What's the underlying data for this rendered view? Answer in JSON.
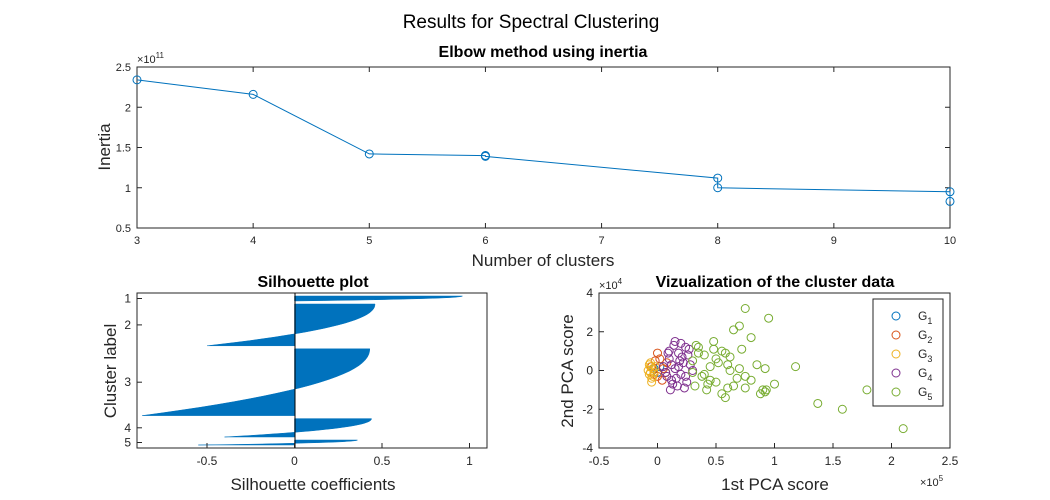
{
  "figure_title": "Results for Spectral Clustering",
  "chart_data": [
    {
      "type": "line",
      "title": "Elbow method using inertia",
      "xlabel": "Number of clusters",
      "ylabel": "Inertia",
      "y_exponent_label": "×10",
      "y_exponent_power": "11",
      "xlim": [
        3,
        10
      ],
      "ylim": [
        0.5,
        2.5
      ],
      "x_ticks": [
        "3",
        "4",
        "5",
        "6",
        "7",
        "8",
        "9",
        "10"
      ],
      "y_ticks": [
        "0.5",
        "1",
        "1.5",
        "2",
        "2.5"
      ],
      "color": "#0072BD",
      "x": [
        3,
        4,
        5,
        6,
        6,
        8,
        8,
        10,
        10
      ],
      "y": [
        2.34,
        2.16,
        1.42,
        1.4,
        1.39,
        1.12,
        1.0,
        0.95,
        0.83
      ]
    },
    {
      "type": "bar",
      "title": "Silhouette plot",
      "xlabel": "Silhouette coefficients",
      "ylabel": "Cluster label",
      "xlim": [
        -0.9,
        1.1
      ],
      "x_ticks": [
        "-0.5",
        "0",
        "0.5",
        "1"
      ],
      "categories": [
        "1",
        "2",
        "3",
        "4",
        "5"
      ],
      "color": "#0072BD",
      "clusters": [
        {
          "label": "1",
          "max": 0.96,
          "min": 0.0,
          "size": 6
        },
        {
          "label": "2",
          "max": 0.46,
          "min": -0.5,
          "size": 50
        },
        {
          "label": "3",
          "max": 0.43,
          "min": -0.87,
          "size": 80
        },
        {
          "label": "4",
          "max": 0.44,
          "min": -0.4,
          "size": 22
        },
        {
          "label": "5",
          "max": 0.36,
          "min": -0.55,
          "size": 6
        }
      ]
    },
    {
      "type": "scatter",
      "title": "Vizualization of the cluster data",
      "xlabel": "1st PCA score",
      "ylabel": "2nd PCA score",
      "x_exponent_label": "×10",
      "x_exponent_power": "5",
      "y_exponent_label": "×10",
      "y_exponent_power": "4",
      "xlim": [
        -0.5,
        2.5
      ],
      "ylim": [
        -4,
        4
      ],
      "x_ticks": [
        "-0.5",
        "0",
        "0.5",
        "1",
        "1.5",
        "2",
        "2.5"
      ],
      "y_ticks": [
        "-4",
        "-2",
        "0",
        "2",
        "4"
      ],
      "legend_position": "top-right",
      "series": [
        {
          "name": "G",
          "sub": "1",
          "color": "#0072BD",
          "x": [
            -0.03,
            0.0,
            0.02
          ],
          "y": [
            0.1,
            -0.1,
            0.2
          ]
        },
        {
          "name": "G",
          "sub": "2",
          "color": "#D95319",
          "x": [
            -0.05,
            -0.02,
            0.0,
            0.02,
            0.05,
            0.08,
            0.0,
            0.04,
            -0.03,
            0.07
          ],
          "y": [
            0.2,
            0.5,
            -0.3,
            0.6,
            0.1,
            0.4,
            0.9,
            -0.5,
            -0.2,
            -0.1
          ]
        },
        {
          "name": "G",
          "sub": "3",
          "color": "#EDB120",
          "x": [
            -0.08,
            -0.07,
            -0.06,
            -0.05,
            -0.04,
            -0.06,
            -0.03,
            -0.05,
            -0.07,
            -0.02,
            -0.04,
            -0.06
          ],
          "y": [
            0.0,
            -0.2,
            0.2,
            -0.4,
            0.1,
            0.4,
            -0.1,
            -0.6,
            0.3,
            0.2,
            -0.3,
            -0.1
          ]
        },
        {
          "name": "G",
          "sub": "4",
          "color": "#7E2F8E",
          "x": [
            0.05,
            0.08,
            0.1,
            0.12,
            0.15,
            0.18,
            0.2,
            0.22,
            0.25,
            0.28,
            0.1,
            0.14,
            0.17,
            0.21,
            0.24,
            0.07,
            0.12,
            0.16,
            0.19,
            0.23,
            0.26,
            0.3,
            0.09,
            0.13,
            0.18,
            0.27,
            0.15,
            0.2,
            0.11,
            0.24
          ],
          "y": [
            0.2,
            -0.3,
            0.6,
            -0.5,
            0.1,
            0.9,
            -0.2,
            0.4,
            -0.6,
            0.3,
            1.0,
            1.3,
            -0.8,
            0.7,
            1.2,
            -0.1,
            0.3,
            -0.4,
            0.5,
            -0.9,
            0.8,
            0.0,
            0.9,
            -0.7,
            0.2,
            1.1,
            1.5,
            1.4,
            -1.0,
            -0.3
          ]
        },
        {
          "name": "G",
          "sub": "5",
          "color": "#77AC30",
          "x": [
            0.3,
            0.32,
            0.35,
            0.38,
            0.4,
            0.42,
            0.45,
            0.48,
            0.5,
            0.52,
            0.55,
            0.58,
            0.6,
            0.62,
            0.65,
            0.68,
            0.7,
            0.72,
            0.75,
            0.8,
            0.85,
            0.9,
            0.92,
            0.95,
            1.0,
            0.75,
            0.7,
            0.8,
            0.6,
            0.55,
            0.4,
            0.45,
            0.5,
            0.35,
            0.3,
            0.65,
            0.88,
            0.93,
            1.18,
            1.37,
            1.58,
            1.79,
            2.1,
            0.75,
            0.92,
            0.62,
            0.48,
            0.43,
            0.33,
            0.58
          ],
          "y": [
            0.5,
            -0.8,
            1.2,
            -0.3,
            0.8,
            -1.0,
            0.2,
            1.5,
            -0.6,
            0.4,
            -1.2,
            0.9,
            -0.9,
            0.0,
            2.1,
            -0.4,
            2.3,
            1.1,
            3.2,
            1.7,
            0.3,
            -1.0,
            -1.1,
            2.7,
            -0.7,
            -0.9,
            0.1,
            -0.5,
            0.3,
            1.0,
            -0.2,
            -0.5,
            0.6,
            0.9,
            -0.1,
            -0.8,
            -1.2,
            -1.0,
            0.2,
            -1.7,
            -2.0,
            -1.0,
            -3.0,
            -0.3,
            0.1,
            0.7,
            1.1,
            -0.7,
            1.3,
            -1.4
          ]
        }
      ]
    }
  ]
}
